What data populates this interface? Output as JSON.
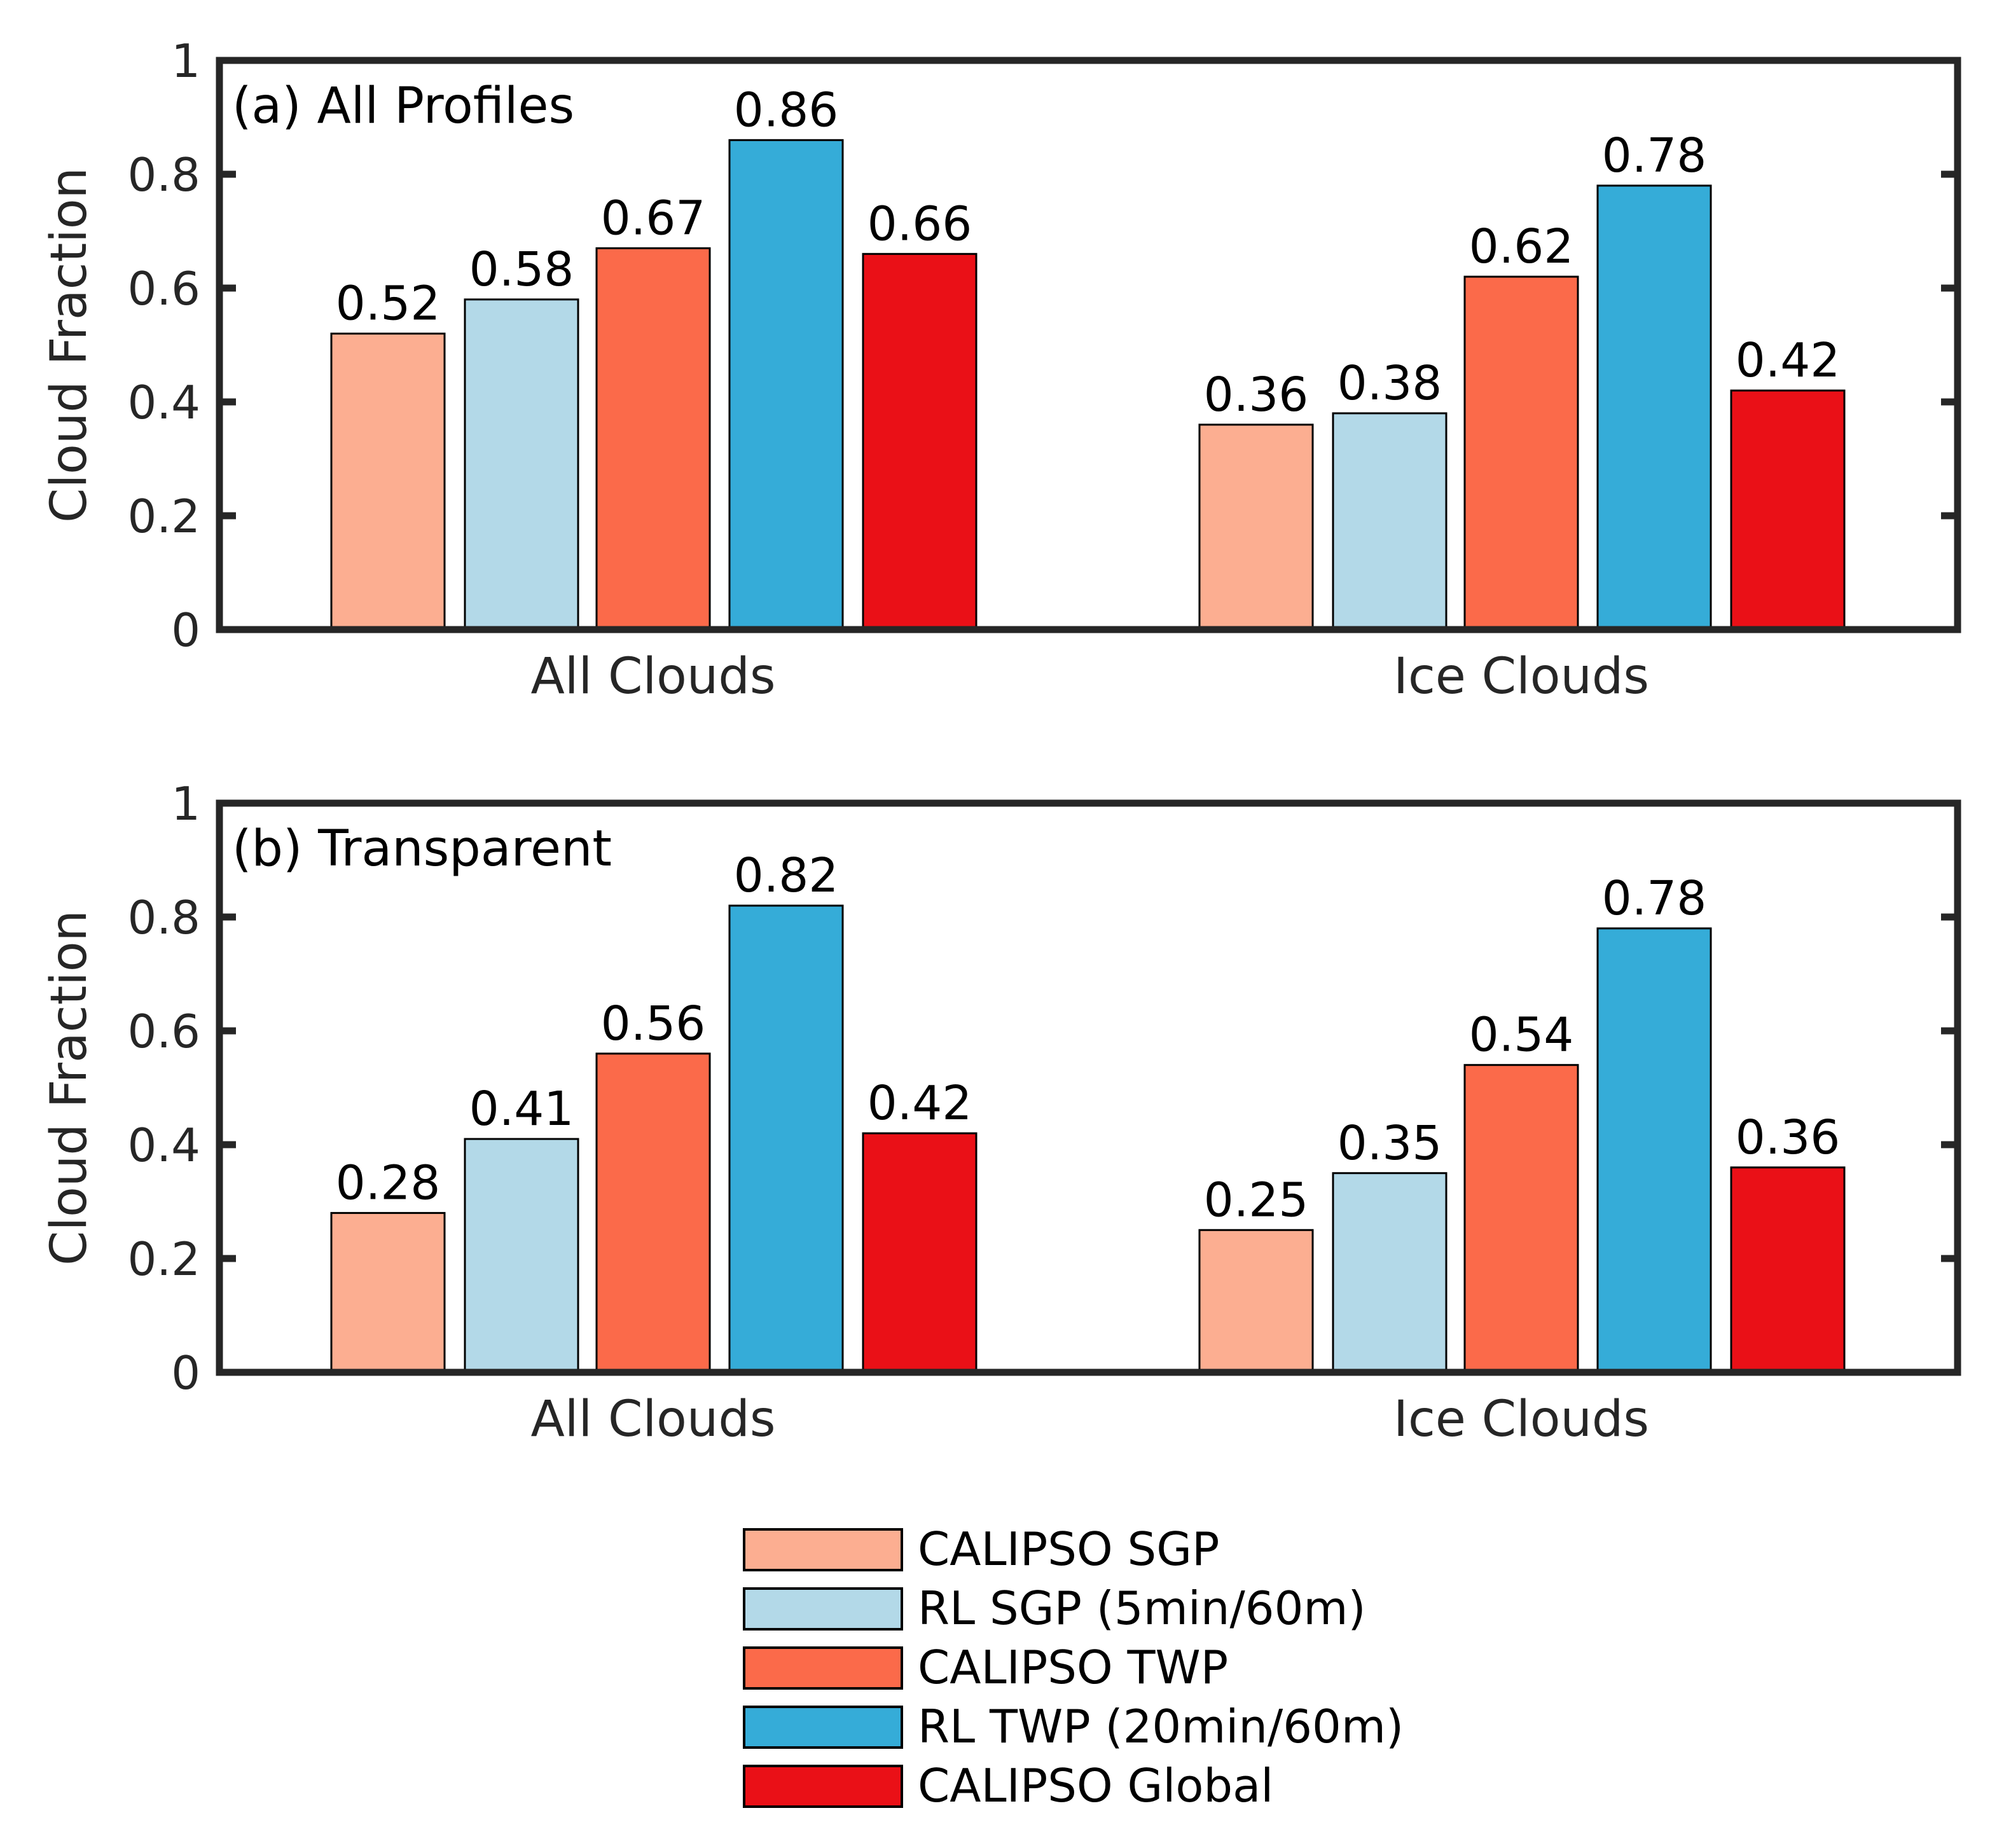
{
  "chart_data": [
    {
      "type": "bar",
      "title": "(a) All Profiles",
      "categories": [
        "All Clouds",
        "Ice Clouds"
      ],
      "ylabel": "Cloud Fraction",
      "xlabel": "",
      "ylim": [
        0,
        1
      ],
      "yticks": [
        0,
        0.2,
        0.4,
        0.6,
        0.8,
        1
      ],
      "ytick_labels": [
        "0",
        "0.2",
        "0.4",
        "0.6",
        "0.8",
        "1"
      ],
      "series": [
        {
          "name": "CALIPSO SGP",
          "values": [
            0.52,
            0.36
          ],
          "labels": [
            "0.52",
            "0.36"
          ]
        },
        {
          "name": "RL SGP (5min/60m)",
          "values": [
            0.58,
            0.38
          ],
          "labels": [
            "0.58",
            "0.38"
          ]
        },
        {
          "name": "CALIPSO TWP",
          "values": [
            0.67,
            0.62
          ],
          "labels": [
            "0.67",
            "0.62"
          ]
        },
        {
          "name": "RL TWP (20min/60m)",
          "values": [
            0.86,
            0.78
          ],
          "labels": [
            "0.86",
            "0.78"
          ]
        },
        {
          "name": "CALIPSO Global",
          "values": [
            0.66,
            0.42
          ],
          "labels": [
            "0.66",
            "0.42"
          ]
        }
      ]
    },
    {
      "type": "bar",
      "title": "(b) Transparent",
      "categories": [
        "All Clouds",
        "Ice Clouds"
      ],
      "ylabel": "Cloud Fraction",
      "xlabel": "",
      "ylim": [
        0,
        1
      ],
      "yticks": [
        0,
        0.2,
        0.4,
        0.6,
        0.8,
        1
      ],
      "ytick_labels": [
        "0",
        "0.2",
        "0.4",
        "0.6",
        "0.8",
        "1"
      ],
      "series": [
        {
          "name": "CALIPSO SGP",
          "values": [
            0.28,
            0.25
          ],
          "labels": [
            "0.28",
            "0.25"
          ]
        },
        {
          "name": "RL SGP (5min/60m)",
          "values": [
            0.41,
            0.35
          ],
          "labels": [
            "0.41",
            "0.35"
          ]
        },
        {
          "name": "CALIPSO TWP",
          "values": [
            0.56,
            0.54
          ],
          "labels": [
            "0.56",
            "0.54"
          ]
        },
        {
          "name": "RL TWP (20min/60m)",
          "values": [
            0.82,
            0.78
          ],
          "labels": [
            "0.82",
            "0.78"
          ]
        },
        {
          "name": "CALIPSO Global",
          "values": [
            0.42,
            0.36
          ],
          "labels": [
            "0.42",
            "0.36"
          ]
        }
      ]
    }
  ],
  "legend": {
    "position": "bottom-center",
    "entries": [
      "CALIPSO SGP",
      "RL SGP (5min/60m)",
      "CALIPSO TWP",
      "RL TWP (20min/60m)",
      "CALIPSO Global"
    ]
  },
  "colors": {
    "series": [
      "#fcae91",
      "#b3d9e8",
      "#fb6a4a",
      "#35acd8",
      "#ea1017"
    ],
    "axis": "#262626",
    "bar_edge": "#000000"
  }
}
